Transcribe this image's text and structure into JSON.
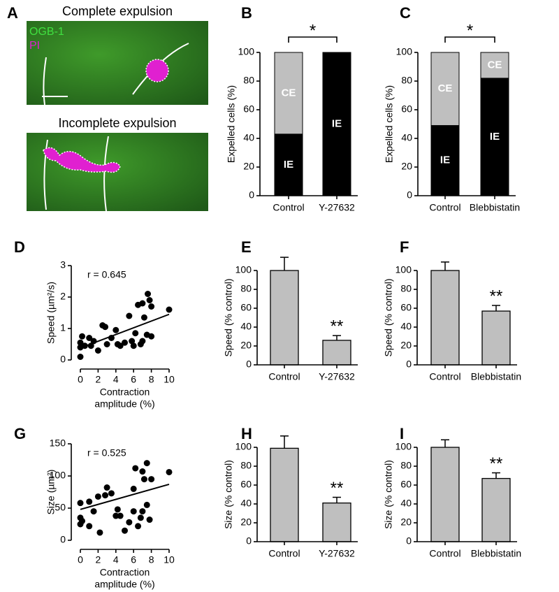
{
  "panel_a": {
    "panel": "A",
    "images": [
      {
        "title": "Complete expulsion",
        "channels": [
          "OGB-1",
          "PI"
        ]
      },
      {
        "title": "Incomplete expulsion"
      }
    ]
  },
  "chart_data": [
    {
      "type": "bar",
      "panel": "B",
      "stacked": true,
      "ylabel": "Expelled cells (%)",
      "categories": [
        "Control",
        "Y-27632"
      ],
      "series": [
        {
          "name": "IE",
          "color": "#000000",
          "values": [
            43,
            100
          ]
        },
        {
          "name": "CE",
          "color": "#bfbfbf",
          "values": [
            57,
            0
          ]
        }
      ],
      "ylim": [
        0,
        100
      ],
      "yticks": [
        0,
        20,
        40,
        60,
        80,
        100
      ],
      "significance": "*"
    },
    {
      "type": "bar",
      "panel": "C",
      "stacked": true,
      "ylabel": "Expelled cells (%)",
      "categories": [
        "Control",
        "Blebbistatin"
      ],
      "series": [
        {
          "name": "IE",
          "color": "#000000",
          "values": [
            49,
            82
          ]
        },
        {
          "name": "CE",
          "color": "#bfbfbf",
          "values": [
            51,
            18
          ]
        }
      ],
      "ylim": [
        0,
        100
      ],
      "yticks": [
        0,
        20,
        40,
        60,
        80,
        100
      ],
      "significance": "*"
    },
    {
      "type": "scatter",
      "panel": "D",
      "ylabel": "Speed (µm²/s)",
      "xlabel": [
        "Contraction",
        "amplitude (%)"
      ],
      "annotation": "r = 0.645",
      "color": "#000000",
      "x": [
        0,
        0,
        0,
        0.2,
        0.5,
        1,
        1.2,
        1.5,
        2,
        2.5,
        2.8,
        3,
        3.5,
        4,
        4.2,
        4.5,
        5,
        5.5,
        5.8,
        6,
        6.2,
        6.5,
        6.8,
        7,
        7,
        7.2,
        7.5,
        7.6,
        7.8,
        8,
        8,
        10
      ],
      "y": [
        0.1,
        0.4,
        0.55,
        0.75,
        0.45,
        0.7,
        0.45,
        0.6,
        0.3,
        1.1,
        1.05,
        0.5,
        0.7,
        0.95,
        0.5,
        0.45,
        0.55,
        1.4,
        0.6,
        0.45,
        0.85,
        1.75,
        0.5,
        0.6,
        1.8,
        1.35,
        0.8,
        2.1,
        1.9,
        0.75,
        1.7,
        1.6
      ],
      "fit": {
        "x": [
          0,
          10
        ],
        "y": [
          0.38,
          1.45
        ]
      },
      "xlim": [
        0,
        10
      ],
      "xticks": [
        0,
        2,
        4,
        6,
        8,
        10
      ],
      "ylim": [
        0,
        3
      ],
      "yticks": [
        0,
        1,
        2,
        3
      ]
    },
    {
      "type": "bar",
      "panel": "E",
      "ylabel": "Speed (% control)",
      "categories": [
        "Control",
        "Y-27632"
      ],
      "values": [
        100,
        26
      ],
      "errors": [
        14,
        5
      ],
      "color": "#bfbfbf",
      "ylim": [
        0,
        100
      ],
      "yticks": [
        0,
        20,
        40,
        60,
        80,
        100
      ],
      "significance": "**"
    },
    {
      "type": "bar",
      "panel": "F",
      "ylabel": "Speed (% control)",
      "categories": [
        "Control",
        "Blebbistatin"
      ],
      "values": [
        100,
        57
      ],
      "errors": [
        9,
        6
      ],
      "color": "#bfbfbf",
      "ylim": [
        0,
        100
      ],
      "yticks": [
        0,
        20,
        40,
        60,
        80,
        100
      ],
      "significance": "**"
    },
    {
      "type": "scatter",
      "panel": "G",
      "ylabel": "Size (µm²)",
      "xlabel": [
        "Contraction",
        "amplitude (%)"
      ],
      "annotation": "r = 0.525",
      "color": "#000000",
      "x": [
        0,
        0,
        0,
        0.2,
        1,
        1,
        1.5,
        2,
        2.2,
        2.8,
        3,
        3.5,
        4,
        4.2,
        4.5,
        5,
        5.5,
        6,
        6,
        6.2,
        6.5,
        6.8,
        7,
        7,
        7.2,
        7.5,
        7.5,
        7.8,
        8,
        10
      ],
      "y": [
        25,
        35,
        58,
        30,
        60,
        22,
        45,
        68,
        12,
        70,
        82,
        73,
        38,
        48,
        38,
        15,
        28,
        45,
        80,
        112,
        22,
        35,
        107,
        45,
        95,
        55,
        120,
        32,
        95,
        106
      ],
      "fit": {
        "x": [
          0,
          10
        ],
        "y": [
          48,
          87
        ]
      },
      "xlim": [
        0,
        10
      ],
      "xticks": [
        0,
        2,
        4,
        6,
        8,
        10
      ],
      "ylim": [
        0,
        150
      ],
      "yticks": [
        0,
        50,
        100,
        150
      ]
    },
    {
      "type": "bar",
      "panel": "H",
      "ylabel": "Size (% control)",
      "categories": [
        "Control",
        "Y-27632"
      ],
      "values": [
        99,
        41
      ],
      "errors": [
        13,
        6
      ],
      "color": "#bfbfbf",
      "ylim": [
        0,
        100
      ],
      "yticks": [
        0,
        20,
        40,
        60,
        80,
        100
      ],
      "significance": "**"
    },
    {
      "type": "bar",
      "panel": "I",
      "ylabel": "Size (% control)",
      "categories": [
        "Control",
        "Blebbistatin"
      ],
      "values": [
        100,
        67
      ],
      "errors": [
        8,
        6
      ],
      "color": "#bfbfbf",
      "ylim": [
        0,
        100
      ],
      "yticks": [
        0,
        20,
        40,
        60,
        80,
        100
      ],
      "significance": "**"
    }
  ]
}
